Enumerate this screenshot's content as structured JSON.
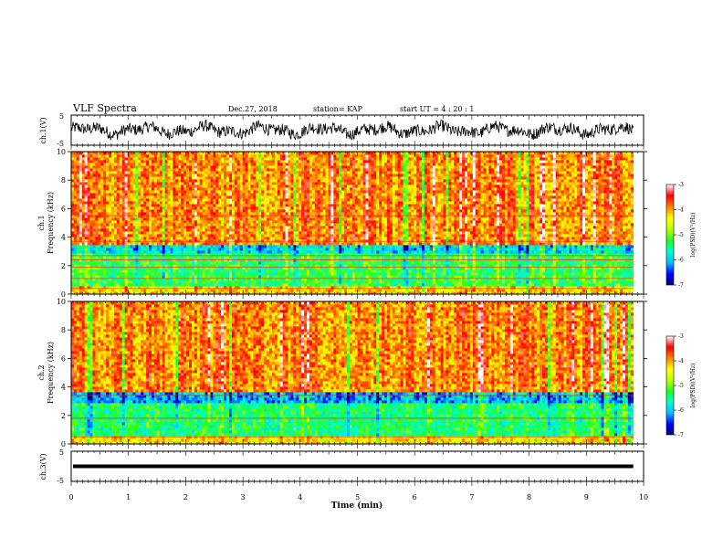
{
  "header": {
    "title": "VLF Spectra",
    "date": "Dec.27, 2018",
    "station": "station= KAP",
    "start_ut": "start  UT =   4 : 20 : 1"
  },
  "chart_data": {
    "type": "heatmap",
    "x_axis": {
      "label": "Time  (min)",
      "range": [
        0,
        10
      ],
      "ticks": [
        "0",
        "1",
        "2",
        "3",
        "4",
        "5",
        "6",
        "7",
        "8",
        "9",
        "10"
      ]
    },
    "waveform_ch1": {
      "ylabel": "ch.1(V)",
      "ylim": [
        -5,
        5
      ],
      "ticks": [
        "5",
        "-5"
      ],
      "baseline_v": 0,
      "amplitude_v": 2.5,
      "data_end_min": 9.82
    },
    "spectrogram_ch1": {
      "ylabel_line1": "ch.1",
      "ylabel_line2": "Frequency  (kHz)",
      "ylim_khz": [
        0,
        10
      ],
      "ticks": [
        "0",
        "2",
        "4",
        "6",
        "8",
        "10"
      ],
      "data_end_min": 9.82,
      "bands": [
        {
          "from_khz": 0,
          "to_khz": 0.6,
          "level": -4.2
        },
        {
          "from_khz": 0.6,
          "to_khz": 2.8,
          "level": -5.3
        },
        {
          "from_khz": 2.8,
          "to_khz": 3.4,
          "level": -5.9
        },
        {
          "from_khz": 3.4,
          "to_khz": 10,
          "level": -3.9
        }
      ],
      "tones_khz": [
        0.4,
        1.1,
        1.9,
        2.4,
        2.7,
        3.7,
        5.5
      ]
    },
    "spectrogram_ch2": {
      "ylabel_line1": "ch.2",
      "ylabel_line2": "Frequency  (kHz)",
      "ylim_khz": [
        0,
        10
      ],
      "ticks": [
        "0",
        "2",
        "4",
        "6",
        "8",
        "10"
      ],
      "data_end_min": 9.82,
      "bands": [
        {
          "from_khz": 0,
          "to_khz": 0.6,
          "level": -4.3
        },
        {
          "from_khz": 0.6,
          "to_khz": 2.9,
          "level": -5.4
        },
        {
          "from_khz": 2.9,
          "to_khz": 3.6,
          "level": -6.1
        },
        {
          "from_khz": 3.6,
          "to_khz": 10,
          "level": -3.9
        }
      ],
      "tones_khz": [
        0.5,
        1.8,
        3.4
      ]
    },
    "waveform_ch3": {
      "ylabel": "ch.3(V)",
      "ylim": [
        -5,
        5
      ],
      "ticks": [
        "5",
        "-5"
      ],
      "baseline_v": 0,
      "data_end_min": 9.82
    },
    "colorbar": {
      "label": "log(PSD)(V²/Hz)",
      "range": [
        -7,
        -3
      ],
      "ticks": [
        "-3",
        "-4",
        "-5",
        "-6",
        "-7"
      ],
      "colormap": [
        "#000080",
        "#0000ff",
        "#00bfff",
        "#00ffd0",
        "#20ff20",
        "#c0ff00",
        "#ffff00",
        "#ff8000",
        "#ff0000",
        "#ffffff"
      ]
    }
  }
}
